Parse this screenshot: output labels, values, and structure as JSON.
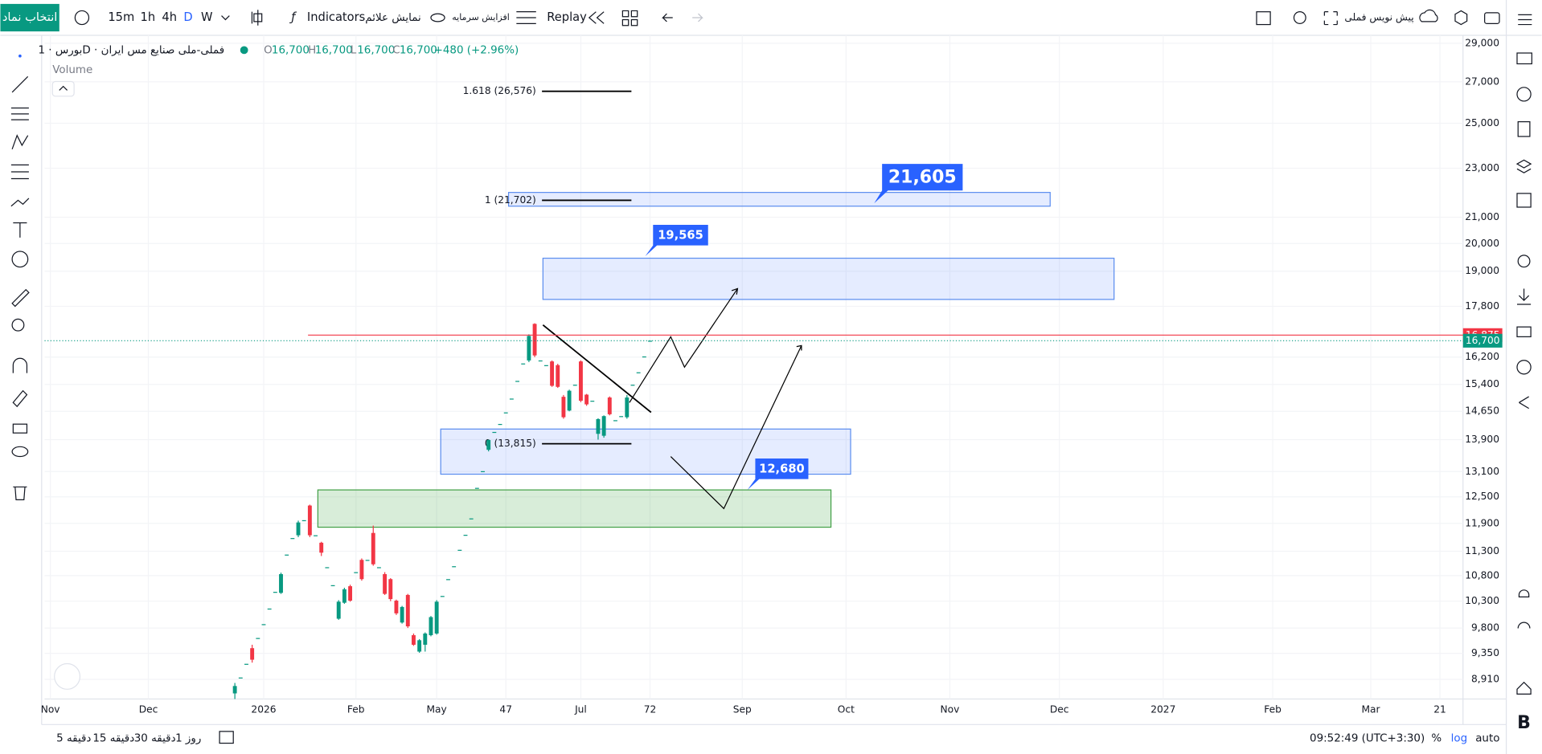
{
  "toolbar": {
    "symbol_button": "انتخاب نماد",
    "intervals": [
      "15m",
      "1h",
      "4h",
      "D",
      "W"
    ],
    "indicators": "Indicators",
    "show_signals": "نمایش علائم",
    "capital_increase": "افزایش سرمایه",
    "replay": "Replay",
    "layout_name": "پیش نویس فملی"
  },
  "legend": {
    "symbol": "بورس · 1D · فملی-ملی صنایع مس ایران",
    "open_label": "O",
    "open": "16,700",
    "high_label": "H",
    "high": "16,700",
    "low_label": "L",
    "low": "16,700",
    "close_label": "C",
    "close": "16,700",
    "change": "+480 (+2.96%)",
    "volume": "Volume"
  },
  "chart_data": {
    "type": "candlestick",
    "log_scale": true,
    "up_color": "#089981",
    "down_color": "#f23645",
    "x": [
      0,
      1,
      2,
      3,
      4,
      5,
      6,
      7,
      8,
      9,
      10,
      11,
      12,
      13,
      14,
      15,
      16,
      17,
      18,
      19,
      20,
      21,
      22,
      23,
      24,
      25,
      26,
      27,
      28,
      29,
      30,
      31,
      32,
      33,
      34,
      35,
      36,
      37,
      38,
      39,
      40,
      41,
      42,
      43,
      44,
      45,
      46,
      47,
      48,
      49,
      50,
      51,
      52,
      53,
      54,
      55,
      56,
      57,
      58,
      59,
      60,
      61,
      62,
      63,
      64,
      65,
      66,
      67,
      68,
      69,
      70,
      71,
      72
    ],
    "open": [
      8680,
      8940,
      9170,
      9440,
      9620,
      9870,
      10160,
      10480,
      10460,
      11230,
      11580,
      11640,
      11970,
      12300,
      11640,
      11480,
      10970,
      10610,
      9970,
      10270,
      10590,
      10870,
      11120,
      11120,
      11690,
      10970,
      10830,
      10730,
      10310,
      9900,
      10420,
      9670,
      9380,
      9500,
      9670,
      9700,
      10400,
      10730,
      10990,
      11330,
      11650,
      12010,
      12710,
      13110,
      13640,
      14100,
      14310,
      14620,
      15000,
      15500,
      16010,
      16100,
      17230,
      16100,
      15960,
      16070,
      15960,
      15050,
      14670,
      15390,
      16070,
      15110,
      14940,
      14050,
      14000,
      15030,
      14410,
      14520,
      14490,
      15390,
      15750,
      16220,
      16700
    ],
    "high": [
      8850,
      8940,
      9170,
      9500,
      9620,
      9870,
      10160,
      10480,
      10860,
      11230,
      11580,
      11960,
      11970,
      12320,
      11640,
      11500,
      10970,
      10610,
      10320,
      10560,
      10620,
      10870,
      11150,
      11120,
      11850,
      10970,
      10870,
      10750,
      10330,
      10210,
      10440,
      9700,
      9600,
      9720,
      10020,
      10320,
      10400,
      10730,
      10990,
      11330,
      11650,
      12010,
      12710,
      13110,
      13900,
      14100,
      14310,
      14620,
      15000,
      15500,
      16010,
      16900,
      17250,
      16100,
      15960,
      16100,
      16000,
      15100,
      15250,
      15390,
      16100,
      15130,
      14940,
      14460,
      14540,
      15060,
      14410,
      14520,
      15100,
      15390,
      15750,
      16220,
      16700
    ],
    "low": [
      8590,
      8940,
      9170,
      9190,
      9620,
      9870,
      10160,
      10480,
      10440,
      11230,
      11580,
      11600,
      11970,
      11600,
      11640,
      11200,
      10970,
      10610,
      9950,
      10250,
      10290,
      10870,
      10700,
      11120,
      11000,
      10970,
      10420,
      10300,
      10040,
      9880,
      9800,
      9480,
      9360,
      9380,
      9650,
      9680,
      10400,
      10730,
      10990,
      11330,
      11650,
      12010,
      12710,
      13110,
      13600,
      14100,
      14310,
      14620,
      15000,
      15500,
      16010,
      16050,
      16200,
      16100,
      15960,
      15330,
      15300,
      14450,
      14650,
      15390,
      14900,
      14800,
      14940,
      13900,
      13950,
      14540,
      14410,
      14520,
      14450,
      15390,
      15750,
      16220,
      16700
    ],
    "close": [
      8800,
      8940,
      9170,
      9240,
      9620,
      9870,
      10160,
      10480,
      10830,
      11230,
      11580,
      11920,
      11970,
      11640,
      11640,
      11270,
      10970,
      10610,
      10290,
      10530,
      10310,
      10870,
      10730,
      11120,
      11030,
      10970,
      10440,
      10340,
      10070,
      10190,
      9830,
      9500,
      9580,
      9700,
      10000,
      10290,
      10400,
      10730,
      10990,
      11330,
      11650,
      12010,
      12710,
      13110,
      13890,
      14100,
      14310,
      14620,
      15000,
      15500,
      16010,
      16850,
      16250,
      16100,
      15960,
      15360,
      15330,
      14490,
      15220,
      15390,
      14940,
      14840,
      14940,
      14440,
      14520,
      14570,
      14410,
      14520,
      15030,
      15390,
      15750,
      16220,
      16700
    ],
    "ylim": [
      8590,
      29430
    ],
    "yticks": [
      {
        "value": 29000,
        "label": "29,000"
      },
      {
        "value": 27000,
        "label": "27,000"
      },
      {
        "value": 25000,
        "label": "25,000"
      },
      {
        "value": 23000,
        "label": "23,000"
      },
      {
        "value": 21000,
        "label": "21,000"
      },
      {
        "value": 20000,
        "label": "20,000"
      },
      {
        "value": 19000,
        "label": "19,000"
      },
      {
        "value": 17800,
        "label": "17,800"
      },
      {
        "value": 16200,
        "label": "16,200"
      },
      {
        "value": 15400,
        "label": "15,400"
      },
      {
        "value": 14650,
        "label": "14,650"
      },
      {
        "value": 13900,
        "label": "13,900"
      },
      {
        "value": 13100,
        "label": "13,100"
      },
      {
        "value": 12500,
        "label": "12,500"
      },
      {
        "value": 11900,
        "label": "11,900"
      },
      {
        "value": 11300,
        "label": "11,300"
      },
      {
        "value": 10800,
        "label": "10,800"
      },
      {
        "value": 10300,
        "label": "10,300"
      },
      {
        "value": 9800,
        "label": "9,800"
      },
      {
        "value": 9350,
        "label": "9,350"
      },
      {
        "value": 8910,
        "label": "8,910"
      }
    ],
    "xlim": [
      -33,
      213
    ],
    "xticks": [
      {
        "value": -32,
        "label": "Nov"
      },
      {
        "value": -15,
        "label": "Dec"
      },
      {
        "value": 5,
        "label": "2026"
      },
      {
        "value": 21,
        "label": "Feb"
      },
      {
        "value": 35,
        "label": "May"
      },
      47,
      {
        "value": 60,
        "label": "Jul"
      },
      72,
      {
        "value": 88,
        "label": "Sep"
      },
      {
        "value": 106,
        "label": "Oct"
      },
      {
        "value": 124,
        "label": "Nov"
      },
      {
        "value": 143,
        "label": "Dec"
      },
      {
        "value": 161,
        "label": "2027"
      },
      {
        "value": 180,
        "label": "Feb"
      },
      {
        "value": 197,
        "label": "Mar"
      },
      {
        "value": 209,
        "label": "21"
      }
    ],
    "price_lines": [
      {
        "value": 16875,
        "label": "16,875",
        "color": "#f23645"
      },
      {
        "value": 16700,
        "label": "16,700",
        "color": "#089981"
      }
    ],
    "fib_labels": [
      "1.618 (26,576)",
      "1 (21,702)",
      "0 (13,815)"
    ],
    "callouts": [
      "21,605",
      "19,565",
      "12,680"
    ]
  },
  "bottom_bar": {
    "ranges": [
      "5 دقیقه",
      "15 دقیقه",
      "30 دقیقه",
      "1 روز"
    ],
    "clock": "09:52:49 (UTC+3:30)",
    "percent": "%",
    "log": "log",
    "auto": "auto"
  }
}
